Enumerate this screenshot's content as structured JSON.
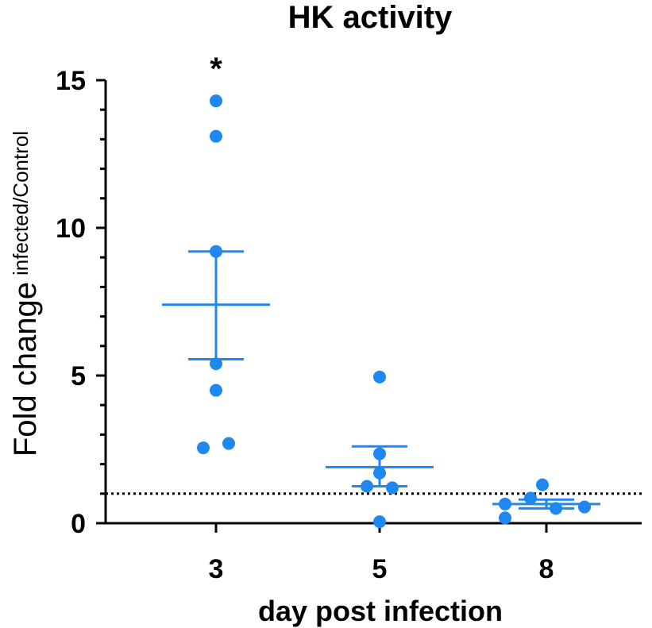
{
  "chart_data": {
    "type": "scatter",
    "title": "HK activity",
    "xlabel": "day post infection",
    "ylabel_main": "Fold change",
    "ylabel_sub": "infected/Control",
    "ylim": [
      0,
      15
    ],
    "yticks": [
      0,
      5,
      10,
      15
    ],
    "reference_line": 1.0,
    "categories": [
      "3",
      "5",
      "8"
    ],
    "groups": [
      {
        "name": "3",
        "points": [
          14.3,
          13.1,
          9.2,
          5.4,
          4.5,
          2.55,
          2.7
        ],
        "mean": 7.4,
        "sem_low": 5.55,
        "sem_high": 9.2,
        "annotation": "*"
      },
      {
        "name": "5",
        "points": [
          4.95,
          2.35,
          1.7,
          1.25,
          1.2,
          0.05
        ],
        "mean": 1.9,
        "sem_low": 1.25,
        "sem_high": 2.6,
        "annotation": ""
      },
      {
        "name": "8",
        "points": [
          1.3,
          0.85,
          0.65,
          0.55,
          0.5,
          0.18
        ],
        "mean": 0.65,
        "sem_low": 0.5,
        "sem_high": 0.8,
        "annotation": ""
      }
    ],
    "color": "#1e88f0"
  }
}
